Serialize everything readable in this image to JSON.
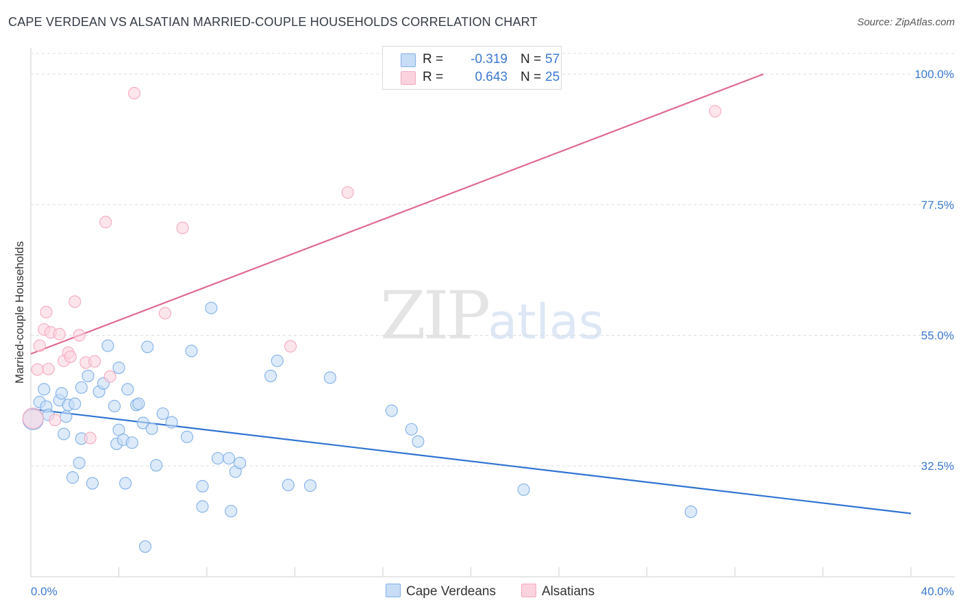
{
  "title": "CAPE VERDEAN VS ALSATIAN MARRIED-COUPLE HOUSEHOLDS CORRELATION CHART",
  "source": "Source: ZipAtlas.com",
  "watermark": {
    "zip": "ZIP",
    "atlas": "atlas"
  },
  "legend": {
    "rows": [
      {
        "r_label": "R =",
        "r_value": "-0.319",
        "n_label": "N =",
        "n_value": "57",
        "color": "#7fb0e8"
      },
      {
        "r_label": "R =",
        "r_value": "0.643",
        "n_label": "N =",
        "n_value": "25",
        "color": "#f5a8c0"
      }
    ]
  },
  "bottom_legend": [
    "Cape Verdeans",
    "Alsatians"
  ],
  "chart_data": {
    "type": "scatter",
    "ylabel": "Married-couple Households",
    "xlim": [
      0,
      40
    ],
    "ylim": [
      13.4,
      104.5
    ],
    "x_tick_labels": [
      "0.0%",
      "40.0%"
    ],
    "y_ticks": [
      32.5,
      55.0,
      77.5,
      100.0
    ],
    "y_tick_labels": [
      "32.5%",
      "55.0%",
      "77.5%",
      "100.0%"
    ],
    "grid": true,
    "colors": {
      "cape_verdeans": "#3a78d0",
      "alsatians": "#e06088",
      "tick_label": "#3a78d0"
    },
    "series": [
      {
        "name": "Cape Verdeans",
        "fill": "#c7dcf5",
        "stroke": "#7fb0e8",
        "trend_color": "#2e72d2",
        "trend": {
          "x": [
            0,
            40
          ],
          "y": [
            42.3,
            24.3
          ]
        },
        "points": [
          {
            "x": 0.1,
            "y": 40.5,
            "big": true
          },
          {
            "x": 0.4,
            "y": 43.5
          },
          {
            "x": 0.6,
            "y": 45.7
          },
          {
            "x": 0.7,
            "y": 42.7
          },
          {
            "x": 0.8,
            "y": 41.3
          },
          {
            "x": 1.3,
            "y": 43.8
          },
          {
            "x": 1.4,
            "y": 45.0
          },
          {
            "x": 1.5,
            "y": 38.0
          },
          {
            "x": 1.6,
            "y": 41.0
          },
          {
            "x": 1.7,
            "y": 43.0
          },
          {
            "x": 2.0,
            "y": 43.2
          },
          {
            "x": 2.3,
            "y": 46.0
          },
          {
            "x": 2.6,
            "y": 48.0
          },
          {
            "x": 2.2,
            "y": 33.0
          },
          {
            "x": 2.3,
            "y": 37.2
          },
          {
            "x": 1.9,
            "y": 30.5
          },
          {
            "x": 2.8,
            "y": 29.5
          },
          {
            "x": 3.1,
            "y": 45.3
          },
          {
            "x": 3.3,
            "y": 46.7
          },
          {
            "x": 3.5,
            "y": 53.2
          },
          {
            "x": 3.8,
            "y": 42.8
          },
          {
            "x": 3.9,
            "y": 36.3
          },
          {
            "x": 4.0,
            "y": 38.7
          },
          {
            "x": 4.0,
            "y": 49.4
          },
          {
            "x": 4.2,
            "y": 37.0
          },
          {
            "x": 4.3,
            "y": 29.5
          },
          {
            "x": 4.4,
            "y": 45.7
          },
          {
            "x": 4.6,
            "y": 36.5
          },
          {
            "x": 4.8,
            "y": 43.0
          },
          {
            "x": 4.9,
            "y": 43.2
          },
          {
            "x": 5.1,
            "y": 39.9
          },
          {
            "x": 5.3,
            "y": 53.0
          },
          {
            "x": 5.5,
            "y": 38.9
          },
          {
            "x": 5.7,
            "y": 32.6
          },
          {
            "x": 6.0,
            "y": 41.5
          },
          {
            "x": 6.4,
            "y": 40.0
          },
          {
            "x": 7.1,
            "y": 37.5
          },
          {
            "x": 7.3,
            "y": 52.3
          },
          {
            "x": 7.8,
            "y": 29.0
          },
          {
            "x": 7.8,
            "y": 25.5
          },
          {
            "x": 8.2,
            "y": 59.7
          },
          {
            "x": 8.5,
            "y": 33.8
          },
          {
            "x": 9.0,
            "y": 33.8
          },
          {
            "x": 9.1,
            "y": 24.7
          },
          {
            "x": 9.3,
            "y": 31.5
          },
          {
            "x": 9.5,
            "y": 33.0
          },
          {
            "x": 10.9,
            "y": 48.0
          },
          {
            "x": 11.2,
            "y": 50.6
          },
          {
            "x": 11.7,
            "y": 29.2
          },
          {
            "x": 12.7,
            "y": 29.1
          },
          {
            "x": 13.6,
            "y": 47.7
          },
          {
            "x": 16.4,
            "y": 42.0
          },
          {
            "x": 17.3,
            "y": 38.8
          },
          {
            "x": 17.6,
            "y": 36.7
          },
          {
            "x": 22.4,
            "y": 28.4
          },
          {
            "x": 30.0,
            "y": 24.6
          },
          {
            "x": 5.2,
            "y": 18.6
          }
        ]
      },
      {
        "name": "Alsatians",
        "fill": "#fbd3df",
        "stroke": "#f5a8c0",
        "trend_color": "#e0698f",
        "trend": {
          "x": [
            0,
            33.3
          ],
          "y": [
            51.8,
            100.0
          ]
        },
        "points": [
          {
            "x": 0.1,
            "y": 40.7,
            "big": true
          },
          {
            "x": 0.3,
            "y": 49.1
          },
          {
            "x": 0.4,
            "y": 53.2
          },
          {
            "x": 0.6,
            "y": 56.0
          },
          {
            "x": 0.7,
            "y": 59.0
          },
          {
            "x": 0.8,
            "y": 49.2
          },
          {
            "x": 0.9,
            "y": 55.5
          },
          {
            "x": 1.1,
            "y": 40.4
          },
          {
            "x": 1.3,
            "y": 55.2
          },
          {
            "x": 1.5,
            "y": 50.6
          },
          {
            "x": 1.7,
            "y": 52.0
          },
          {
            "x": 1.8,
            "y": 51.3
          },
          {
            "x": 2.0,
            "y": 60.8
          },
          {
            "x": 2.2,
            "y": 55.0
          },
          {
            "x": 2.5,
            "y": 50.3
          },
          {
            "x": 2.7,
            "y": 37.3
          },
          {
            "x": 2.9,
            "y": 50.5
          },
          {
            "x": 3.4,
            "y": 74.5
          },
          {
            "x": 3.6,
            "y": 47.9
          },
          {
            "x": 4.7,
            "y": 96.7
          },
          {
            "x": 6.1,
            "y": 58.8
          },
          {
            "x": 6.9,
            "y": 73.5
          },
          {
            "x": 11.8,
            "y": 53.1
          },
          {
            "x": 14.4,
            "y": 79.6
          },
          {
            "x": 31.1,
            "y": 93.6
          }
        ]
      }
    ]
  }
}
